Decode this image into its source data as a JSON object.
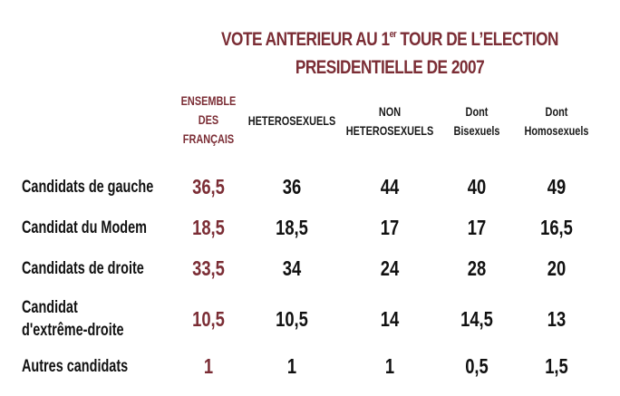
{
  "chart_data": {
    "type": "table",
    "title_line1_main": "VOTE ANTERIEUR AU 1",
    "title_line1_sup": "er",
    "title_line1_end": " TOUR DE L’ELECTION",
    "title_line2": "PRESIDENTIELLE DE 2007",
    "columns": [
      {
        "key": "ensemble",
        "lines": [
          "ENSEMBLE",
          "DES",
          "FRANÇAIS"
        ]
      },
      {
        "key": "hetero",
        "lines": [
          "HETEROSEXUELS"
        ]
      },
      {
        "key": "nonhetero",
        "lines": [
          "NON",
          "HETEROSEXUELS"
        ]
      },
      {
        "key": "bi",
        "lines": [
          "Dont",
          "Bisexuels"
        ]
      },
      {
        "key": "homo",
        "lines": [
          "Dont",
          "Homosexuels"
        ]
      }
    ],
    "rows": [
      {
        "label": [
          "Candidats de gauche"
        ],
        "values": [
          "36,5",
          "36",
          "44",
          "40",
          "49"
        ]
      },
      {
        "label": [
          "Candidat du Modem"
        ],
        "values": [
          "18,5",
          "18,5",
          "17",
          "17",
          "16,5"
        ]
      },
      {
        "label": [
          "Candidats de droite"
        ],
        "values": [
          "33,5",
          "34",
          "24",
          "28",
          "20"
        ]
      },
      {
        "label": [
          "Candidat",
          "d'extrême-droite"
        ],
        "values": [
          "10,5",
          "10,5",
          "14",
          "14,5",
          "13"
        ]
      },
      {
        "label": [
          "Autres candidats"
        ],
        "values": [
          "1",
          "1",
          "1",
          "0,5",
          "1,5"
        ]
      }
    ],
    "accent_color": "#7b2d35"
  }
}
